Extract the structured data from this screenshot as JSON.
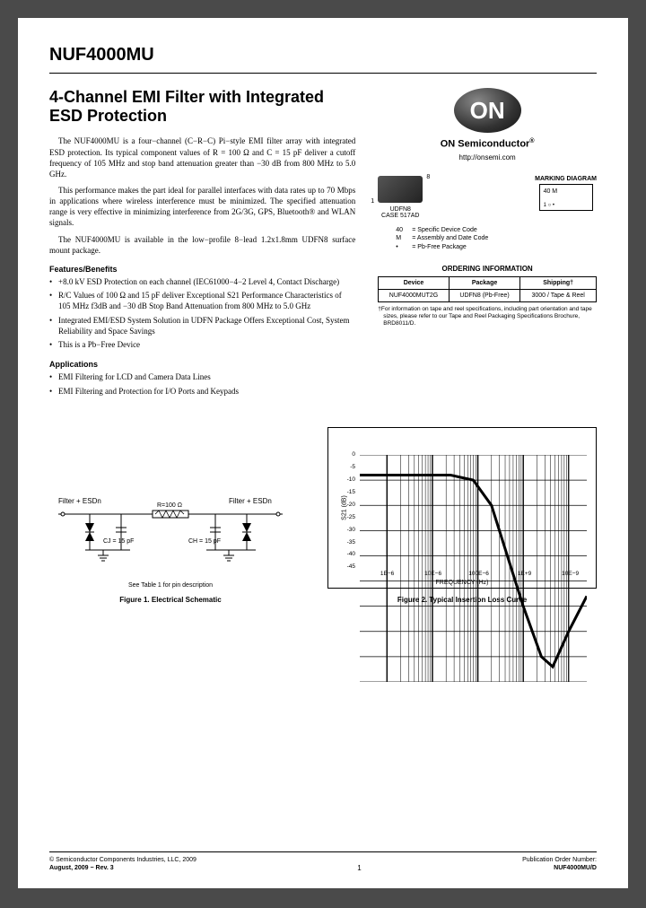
{
  "partNumber": "NUF4000MU",
  "title": "4-Channel EMI Filter with Integrated ESD Protection",
  "paragraphs": [
    "The NUF4000MU is a four−channel (C−R−C) Pi−style EMI filter array with integrated ESD protection. Its typical component values of R = 100 Ω and C = 15 pF deliver a cutoff frequency of 105 MHz and stop band attenuation greater than −30 dB from 800 MHz to 5.0 GHz.",
    "This performance makes the part ideal for parallel interfaces with data rates up to 70 Mbps in applications where wireless interference must be minimized. The specified attenuation range is very effective in minimizing interference from 2G/3G, GPS, Bluetooth® and WLAN signals.",
    "The NUF4000MU is available in the low−profile 8−lead 1.2x1.8mm UDFN8 surface mount package."
  ],
  "featuresHeading": "Features/Benefits",
  "features": [
    "+8.0 kV ESD Protection on each channel (IEC61000−4−2 Level 4, Contact Discharge)",
    "R/C Values of 100 Ω and 15 pF deliver Exceptional S21 Performance Characteristics of 105 MHz f3dB and −30 dB Stop Band Attenuation from 800 MHz to 5.0 GHz",
    "Integrated EMI/ESD System Solution in UDFN Package Offers Exceptional Cost, System Reliability and Space Savings",
    "This is a Pb−Free Device"
  ],
  "applicationsHeading": "Applications",
  "applications": [
    "EMI Filtering for LCD and Camera Data Lines",
    "EMI Filtering and Protection for I/O Ports and Keypads"
  ],
  "logo": "ON",
  "company": "ON Semiconductor",
  "url": "http://onsemi.com",
  "marking": {
    "heading": "MARKING DIAGRAM",
    "caseLabel": "UDFN8",
    "caseCode": "CASE 517AD",
    "boxText": "40 M",
    "legend": [
      {
        "k": "40",
        "v": "= Specific Device Code"
      },
      {
        "k": "M",
        "v": "= Assembly and Date Code"
      },
      {
        "k": "•",
        "v": "= Pb-Free Package"
      }
    ]
  },
  "ordering": {
    "heading": "ORDERING INFORMATION",
    "headers": [
      "Device",
      "Package",
      "Shipping†"
    ],
    "row": [
      "NUF4000MUT2G",
      "UDFN8 (Pb-Free)",
      "3000 / Tape & Reel"
    ],
    "note": "†For information on tape and reel specifications, including part orientation and tape sizes, please refer to our Tape and Reel Packaging Specifications Brochure, BRD8011/D."
  },
  "schematic": {
    "leftLabel": "Filter + ESDn",
    "rightLabel": "Filter + ESDn",
    "resistor": "R=100 Ω",
    "capL": "CJ = 15 pF",
    "capR": "CH = 15 pF",
    "seeTable": "See Table 1 for pin description"
  },
  "chart": {
    "ylabel": "S21 (dB)",
    "xlabel": "FREQUENCY (Hz)",
    "ylim": [
      -45,
      0
    ],
    "yticks": [
      0,
      -5,
      -10,
      -15,
      -20,
      -25,
      -30,
      -35,
      -40,
      -45
    ],
    "xticks": [
      "1E−6",
      "10E−6",
      "100E−6",
      "1E+9",
      "10E−9"
    ],
    "xtick_positions_pct": [
      12,
      32,
      52,
      72,
      92
    ],
    "grid_color": "#000000",
    "line_color": "#000000",
    "background_color": "#ffffff",
    "curve_points": [
      [
        0,
        -4
      ],
      [
        40,
        -4
      ],
      [
        50,
        -5
      ],
      [
        58,
        -10
      ],
      [
        65,
        -20
      ],
      [
        72,
        -30
      ],
      [
        80,
        -40
      ],
      [
        85,
        -42
      ],
      [
        92,
        -35
      ],
      [
        100,
        -28
      ]
    ]
  },
  "fig1Caption": "Figure 1. Electrical Schematic",
  "fig2Caption": "Figure 2. Typical Insertion Loss Curve",
  "footer": {
    "copyright": "© Semiconductor Components Industries, LLC, 2009",
    "date": "August, 2009 − Rev. 3",
    "page": "1",
    "pubLabel": "Publication Order Number:",
    "pubNum": "NUF4000MU/D"
  }
}
